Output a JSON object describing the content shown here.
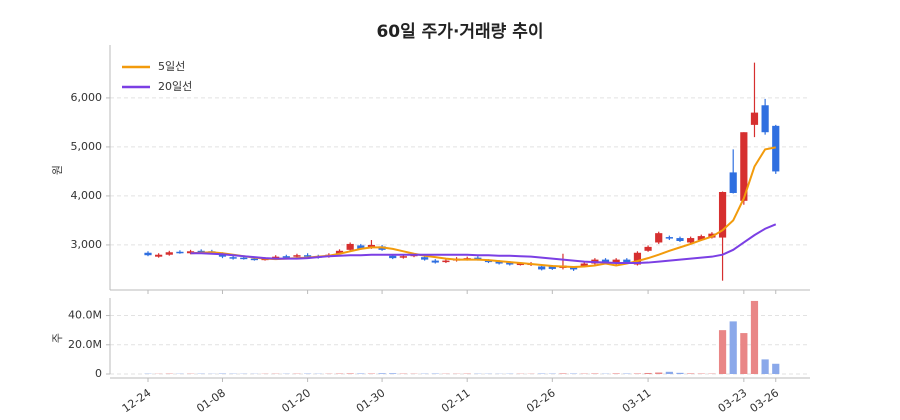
{
  "chart_data": [
    {
      "type": "candlestick",
      "title": "60일 주가·거래량 추이",
      "y_label": "원",
      "categories": [
        "12-24",
        null,
        null,
        null,
        null,
        null,
        null,
        "01-08",
        null,
        null,
        null,
        null,
        null,
        null,
        null,
        "01-20",
        null,
        null,
        null,
        null,
        null,
        null,
        "01-30",
        null,
        null,
        null,
        null,
        null,
        null,
        null,
        "02-11",
        null,
        null,
        null,
        null,
        null,
        null,
        null,
        "02-26",
        null,
        null,
        null,
        null,
        null,
        null,
        null,
        null,
        "03-11",
        null,
        null,
        null,
        null,
        null,
        null,
        null,
        null,
        "03-23",
        null,
        null,
        "03-26"
      ],
      "open": [
        2840,
        2760,
        2800,
        2860,
        2830,
        2880,
        2870,
        2820,
        2750,
        2740,
        2720,
        2700,
        2720,
        2770,
        2760,
        2790,
        2770,
        2760,
        2820,
        2900,
        2990,
        2940,
        2970,
        2780,
        2740,
        2770,
        2750,
        2680,
        2650,
        2680,
        2700,
        2740,
        2680,
        2660,
        2640,
        2600,
        2590,
        2560,
        2560,
        2530,
        2540,
        2560,
        2620,
        2700,
        2620,
        2700,
        2600,
        2880,
        3050,
        3160,
        3140,
        3050,
        3100,
        3150,
        3150,
        4480,
        3900,
        5450,
        5850,
        5430
      ],
      "high": [
        2870,
        2830,
        2880,
        2890,
        2900,
        2910,
        2900,
        2850,
        2780,
        2770,
        2750,
        2750,
        2790,
        2800,
        2820,
        2830,
        2800,
        2830,
        2910,
        3050,
        3020,
        3100,
        3000,
        2810,
        2800,
        2830,
        2780,
        2710,
        2710,
        2750,
        2760,
        2770,
        2710,
        2690,
        2670,
        2650,
        2650,
        2590,
        2590,
        2820,
        2570,
        2650,
        2730,
        2730,
        2730,
        2730,
        2870,
        2990,
        3270,
        3190,
        3170,
        3170,
        3210,
        3260,
        4090,
        4950,
        5300,
        6720,
        5980,
        5450
      ],
      "low": [
        2770,
        2740,
        2780,
        2820,
        2810,
        2840,
        2830,
        2730,
        2700,
        2700,
        2680,
        2680,
        2700,
        2720,
        2740,
        2740,
        2720,
        2740,
        2800,
        2880,
        2900,
        2920,
        2880,
        2710,
        2720,
        2750,
        2680,
        2620,
        2630,
        2660,
        2680,
        2680,
        2630,
        2600,
        2580,
        2580,
        2570,
        2480,
        2490,
        2500,
        2470,
        2540,
        2600,
        2620,
        2600,
        2620,
        2580,
        2860,
        3020,
        3100,
        3060,
        3030,
        3080,
        3130,
        2270,
        4050,
        3820,
        5200,
        5250,
        4450
      ],
      "close": [
        2790,
        2800,
        2850,
        2840,
        2870,
        2860,
        2850,
        2760,
        2720,
        2720,
        2700,
        2720,
        2760,
        2740,
        2790,
        2760,
        2740,
        2800,
        2880,
        3020,
        2920,
        3000,
        2900,
        2730,
        2770,
        2800,
        2700,
        2640,
        2680,
        2720,
        2730,
        2700,
        2650,
        2620,
        2600,
        2620,
        2620,
        2500,
        2510,
        2580,
        2500,
        2620,
        2700,
        2640,
        2700,
        2640,
        2840,
        2960,
        3240,
        3130,
        3080,
        3140,
        3180,
        3230,
        4080,
        4060,
        5300,
        5700,
        5300,
        4500
      ],
      "up_color": "#d62f2f",
      "down_color": "#2f6fe0",
      "series": [
        {
          "name": "5일선",
          "color": "#f29b0c",
          "values": [
            null,
            null,
            null,
            null,
            2830,
            2840,
            2850,
            2830,
            2800,
            2770,
            2740,
            2720,
            2710,
            2720,
            2730,
            2740,
            2760,
            2780,
            2820,
            2870,
            2920,
            2950,
            2950,
            2920,
            2870,
            2820,
            2780,
            2750,
            2720,
            2700,
            2700,
            2700,
            2690,
            2670,
            2650,
            2630,
            2610,
            2590,
            2570,
            2560,
            2550,
            2560,
            2580,
            2620,
            2580,
            2620,
            2670,
            2730,
            2800,
            2880,
            2950,
            3020,
            3100,
            3170,
            3300,
            3500,
            3950,
            4600,
            4950,
            4990
          ]
        },
        {
          "name": "20일선",
          "color": "#7b3fe4",
          "values": [
            null,
            null,
            null,
            null,
            2830,
            2830,
            2820,
            2810,
            2790,
            2770,
            2750,
            2730,
            2720,
            2720,
            2720,
            2730,
            2750,
            2770,
            2780,
            2790,
            2790,
            2800,
            2800,
            2800,
            2800,
            2800,
            2800,
            2800,
            2800,
            2800,
            2800,
            2790,
            2790,
            2780,
            2780,
            2770,
            2760,
            2740,
            2720,
            2700,
            2680,
            2660,
            2650,
            2640,
            2630,
            2630,
            2630,
            2640,
            2660,
            2680,
            2700,
            2720,
            2740,
            2760,
            2800,
            2900,
            3050,
            3200,
            3330,
            3420
          ]
        }
      ],
      "ylim": [
        2080,
        7080
      ],
      "yticks": [
        {
          "value": 3000,
          "label": "3,000"
        },
        {
          "value": 4000,
          "label": "4,000"
        },
        {
          "value": 5000,
          "label": "5,000"
        },
        {
          "value": 6000,
          "label": "6,000"
        }
      ],
      "grid": true,
      "legend": "upper-left"
    },
    {
      "type": "volume",
      "y_label": "주",
      "values": [
        200000,
        150000,
        250000,
        180000,
        200000,
        220000,
        150000,
        300000,
        200000,
        180000,
        150000,
        160000,
        200000,
        180000,
        220000,
        250000,
        180000,
        200000,
        300000,
        400000,
        350000,
        300000,
        500000,
        500000,
        250000,
        200000,
        220000,
        300000,
        200000,
        180000,
        250000,
        200000,
        180000,
        150000,
        200000,
        180000,
        160000,
        300000,
        250000,
        400000,
        300000,
        250000,
        350000,
        200000,
        400000,
        300000,
        350000,
        700000,
        1000000,
        1500000,
        800000,
        400000,
        300000,
        250000,
        30000000,
        36000000,
        28000000,
        50000000,
        10000000,
        7000000
      ],
      "up_color": "#e98686",
      "down_color": "#8aa8ea",
      "ylim": [
        0,
        52000000
      ],
      "yticks": [
        0,
        {
          "value": 20000000,
          "label": "20.0M"
        },
        {
          "value": 40000000,
          "label": "40.0M"
        }
      ],
      "grid": true
    }
  ]
}
